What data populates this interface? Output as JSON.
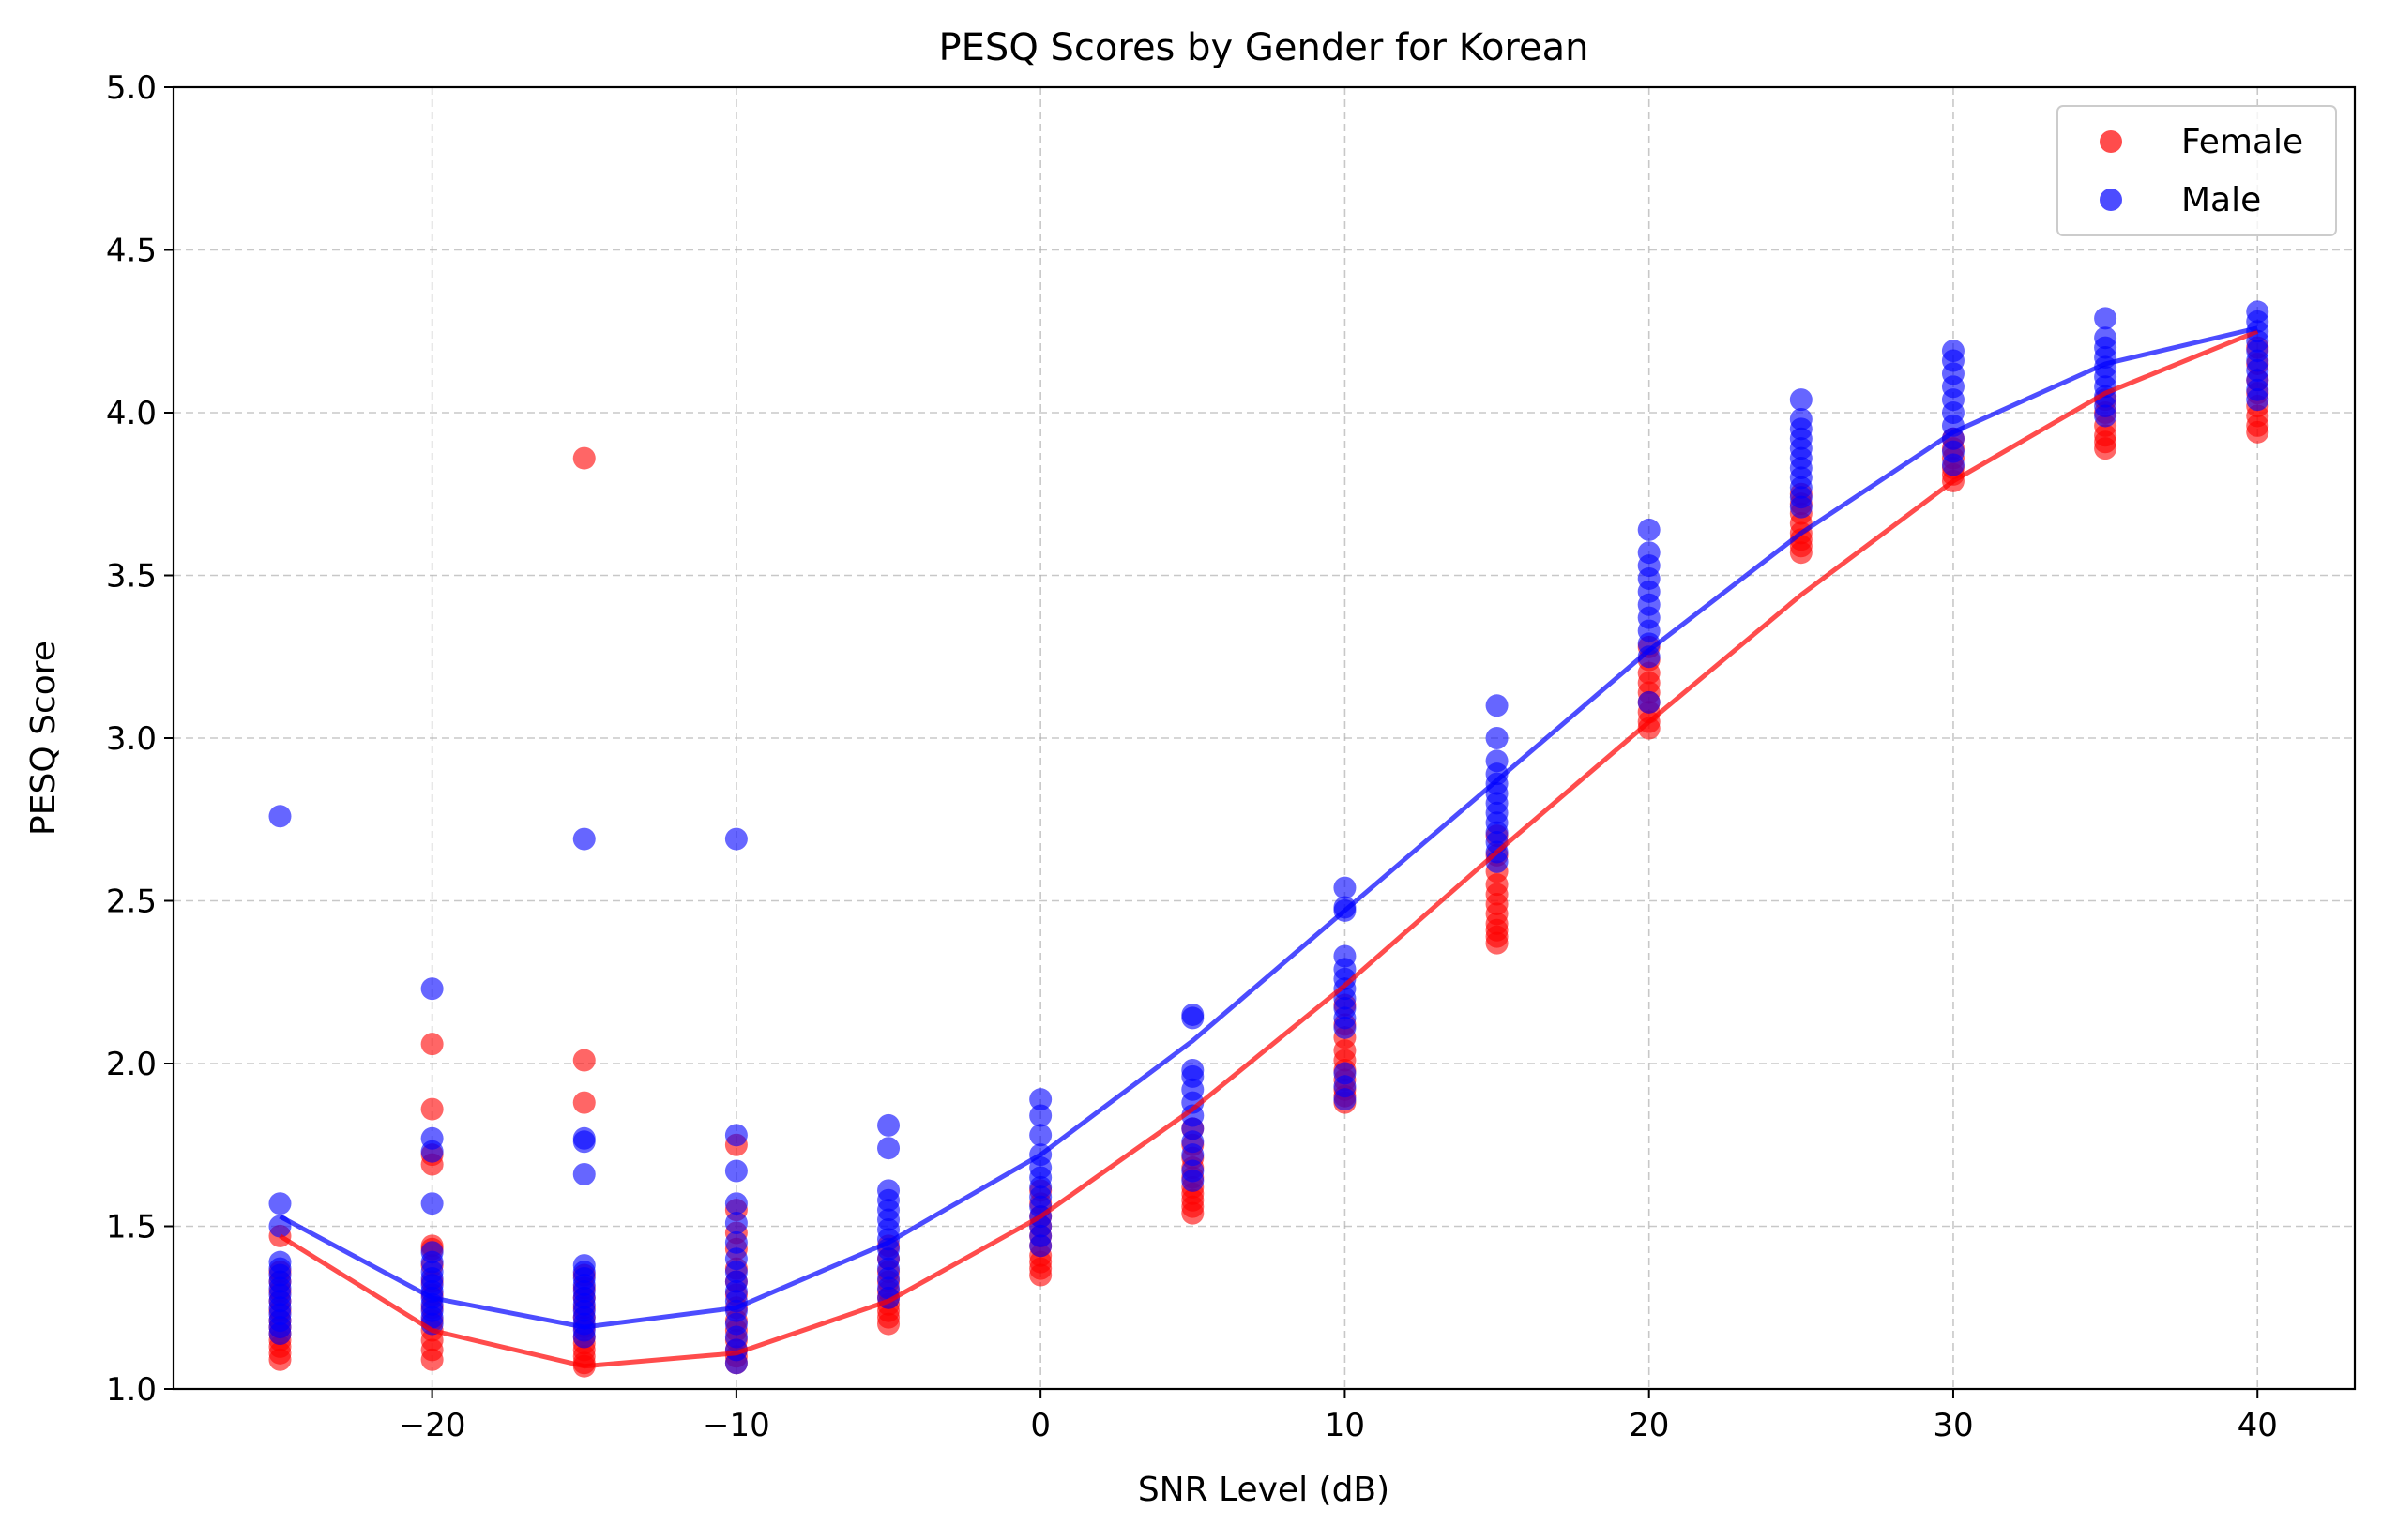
{
  "chart_data": {
    "type": "scatter",
    "title": "PESQ Scores by Gender for Korean",
    "xlabel": "SNR Level (dB)",
    "ylabel": "PESQ Score",
    "xlim": [
      -28.5,
      43.2
    ],
    "ylim": [
      1.0,
      5.0
    ],
    "xticks": [
      -20,
      -10,
      0,
      10,
      20,
      30,
      40
    ],
    "xtick_labels": [
      "−20",
      "−10",
      "0",
      "10",
      "20",
      "30",
      "40"
    ],
    "yticks": [
      1.0,
      1.5,
      2.0,
      2.5,
      3.0,
      3.5,
      4.0,
      4.5,
      5.0
    ],
    "ytick_labels": [
      "1.0",
      "1.5",
      "2.0",
      "2.5",
      "3.0",
      "3.5",
      "4.0",
      "4.5",
      "5.0"
    ],
    "grid": true,
    "legend_position": "top-right",
    "x": [
      -25,
      -20,
      -15,
      -10,
      -5,
      0,
      5,
      10,
      15,
      20,
      25,
      30,
      35,
      40
    ],
    "series": [
      {
        "name": "Female",
        "color": "#ff0000",
        "mean_line": [
          1.47,
          1.18,
          1.07,
          1.11,
          1.27,
          1.53,
          1.86,
          2.24,
          2.65,
          3.05,
          3.44,
          3.79,
          4.06,
          4.25
        ],
        "points": {
          "-25": [
            1.09,
            1.11,
            1.13,
            1.15,
            1.17,
            1.19,
            1.21,
            1.24,
            1.27,
            1.3,
            1.33,
            1.36,
            1.47
          ],
          "-20": [
            1.09,
            1.12,
            1.15,
            1.18,
            1.21,
            1.25,
            1.29,
            1.33,
            1.38,
            1.43,
            1.44,
            1.69,
            1.72,
            1.86,
            2.06
          ],
          "-15": [
            1.07,
            1.08,
            1.1,
            1.12,
            1.14,
            1.16,
            1.19,
            1.22,
            1.25,
            1.28,
            1.31,
            1.35,
            1.88,
            2.01,
            3.86
          ],
          "-10": [
            1.08,
            1.1,
            1.12,
            1.15,
            1.18,
            1.21,
            1.25,
            1.29,
            1.33,
            1.37,
            1.43,
            1.48,
            1.55,
            1.75
          ],
          "-5": [
            1.2,
            1.22,
            1.24,
            1.26,
            1.28,
            1.3,
            1.33,
            1.36,
            1.4,
            1.44
          ],
          "0": [
            1.35,
            1.37,
            1.39,
            1.41,
            1.44,
            1.47,
            1.5,
            1.53,
            1.57,
            1.61
          ],
          "5": [
            1.54,
            1.56,
            1.58,
            1.6,
            1.62,
            1.65,
            1.68,
            1.71,
            1.75,
            1.8
          ],
          "10": [
            1.88,
            1.9,
            1.92,
            1.95,
            1.98,
            2.01,
            2.04,
            2.08,
            2.12,
            2.18
          ],
          "15": [
            2.37,
            2.39,
            2.41,
            2.43,
            2.46,
            2.49,
            2.52,
            2.55,
            2.59,
            2.64,
            2.7
          ],
          "20": [
            3.03,
            3.05,
            3.08,
            3.11,
            3.14,
            3.17,
            3.2,
            3.24,
            3.28
          ],
          "25": [
            3.57,
            3.59,
            3.61,
            3.63,
            3.66,
            3.69,
            3.72,
            3.75
          ],
          "30": [
            3.79,
            3.81,
            3.83,
            3.86,
            3.89,
            3.92
          ],
          "35": [
            3.89,
            3.91,
            3.93,
            3.96,
            4.0,
            4.04
          ],
          "40": [
            3.94,
            3.96,
            3.99,
            4.02,
            4.06,
            4.1,
            4.15,
            4.2
          ]
        }
      },
      {
        "name": "Male",
        "color": "#0000ff",
        "mean_line": [
          1.53,
          1.28,
          1.19,
          1.25,
          1.45,
          1.72,
          2.07,
          2.47,
          2.87,
          3.27,
          3.63,
          3.94,
          4.15,
          4.26
        ],
        "points": {
          "-25": [
            1.17,
            1.19,
            1.21,
            1.23,
            1.25,
            1.27,
            1.29,
            1.31,
            1.33,
            1.35,
            1.37,
            1.39,
            1.5,
            1.57,
            2.76
          ],
          "-20": [
            1.2,
            1.22,
            1.24,
            1.26,
            1.28,
            1.3,
            1.32,
            1.34,
            1.36,
            1.39,
            1.42,
            1.57,
            1.73,
            1.77,
            2.23
          ],
          "-15": [
            1.16,
            1.18,
            1.2,
            1.22,
            1.24,
            1.26,
            1.28,
            1.3,
            1.32,
            1.34,
            1.36,
            1.38,
            1.66,
            1.76,
            1.77,
            2.69
          ],
          "-10": [
            1.08,
            1.12,
            1.16,
            1.2,
            1.24,
            1.27,
            1.3,
            1.33,
            1.36,
            1.4,
            1.45,
            1.51,
            1.57,
            1.67,
            1.78,
            2.69
          ],
          "-5": [
            1.28,
            1.31,
            1.34,
            1.37,
            1.4,
            1.43,
            1.46,
            1.49,
            1.52,
            1.55,
            1.58,
            1.61,
            1.74,
            1.81
          ],
          "0": [
            1.44,
            1.47,
            1.5,
            1.53,
            1.56,
            1.59,
            1.62,
            1.65,
            1.68,
            1.72,
            1.78,
            1.84,
            1.89
          ],
          "5": [
            1.64,
            1.67,
            1.72,
            1.76,
            1.8,
            1.84,
            1.88,
            1.92,
            1.96,
            1.98,
            2.14,
            2.15
          ],
          "10": [
            1.89,
            1.93,
            1.97,
            2.11,
            2.14,
            2.17,
            2.2,
            2.23,
            2.26,
            2.29,
            2.33,
            2.47,
            2.48,
            2.54
          ],
          "15": [
            2.62,
            2.65,
            2.68,
            2.71,
            2.74,
            2.77,
            2.8,
            2.83,
            2.86,
            2.89,
            2.93,
            3.0,
            3.1
          ],
          "20": [
            3.11,
            3.25,
            3.29,
            3.33,
            3.37,
            3.41,
            3.45,
            3.49,
            3.53,
            3.57,
            3.64
          ],
          "25": [
            3.71,
            3.74,
            3.77,
            3.8,
            3.83,
            3.86,
            3.89,
            3.92,
            3.95,
            3.98,
            4.04
          ],
          "30": [
            3.84,
            3.88,
            3.92,
            3.96,
            4.0,
            4.04,
            4.08,
            4.12,
            4.16,
            4.19
          ],
          "35": [
            3.99,
            4.02,
            4.05,
            4.08,
            4.11,
            4.14,
            4.17,
            4.2,
            4.23,
            4.29
          ],
          "40": [
            4.04,
            4.07,
            4.1,
            4.13,
            4.16,
            4.19,
            4.22,
            4.25,
            4.28,
            4.31
          ]
        }
      }
    ]
  }
}
